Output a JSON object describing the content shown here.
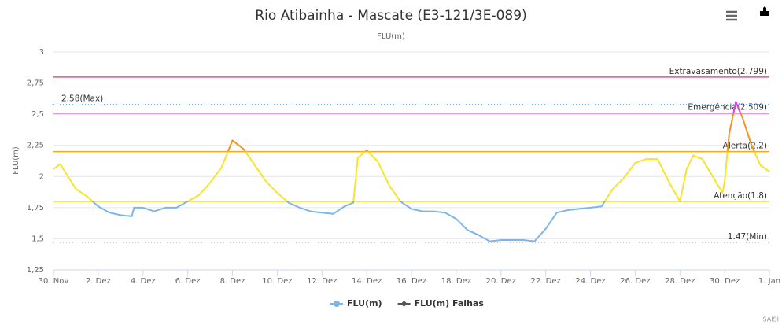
{
  "chart_data": {
    "type": "line",
    "title": "Rio Atibainha - Mascate (E3-121/3E-089)",
    "subtitle": "FLU(m)",
    "y_axis_label": "FLU(m)",
    "credits": "SAISI",
    "xlim": [
      0,
      32
    ],
    "xticks": [
      {
        "value": 0,
        "label": "30. Nov"
      },
      {
        "value": 2,
        "label": "2. Dez"
      },
      {
        "value": 4,
        "label": "4. Dez"
      },
      {
        "value": 6,
        "label": "6. Dez"
      },
      {
        "value": 8,
        "label": "8. Dez"
      },
      {
        "value": 10,
        "label": "10. Dez"
      },
      {
        "value": 12,
        "label": "12. Dez"
      },
      {
        "value": 14,
        "label": "14. Dez"
      },
      {
        "value": 16,
        "label": "16. Dez"
      },
      {
        "value": 18,
        "label": "18. Dez"
      },
      {
        "value": 20,
        "label": "20. Dez"
      },
      {
        "value": 22,
        "label": "22. Dez"
      },
      {
        "value": 24,
        "label": "24. Dez"
      },
      {
        "value": 26,
        "label": "26. Dez"
      },
      {
        "value": 28,
        "label": "28. Dez"
      },
      {
        "value": 30,
        "label": "30. Dez"
      },
      {
        "value": 32,
        "label": "1. Jan"
      }
    ],
    "ylim": [
      1.25,
      3
    ],
    "yticks": [
      {
        "value": 1.25,
        "label": "1,25"
      },
      {
        "value": 1.5,
        "label": "1,5"
      },
      {
        "value": 1.75,
        "label": "1,75"
      },
      {
        "value": 2,
        "label": "2"
      },
      {
        "value": 2.25,
        "label": "2,25"
      },
      {
        "value": 2.5,
        "label": "2,5"
      },
      {
        "value": 2.75,
        "label": "2,75"
      },
      {
        "value": 3,
        "label": "3"
      }
    ],
    "grid": true,
    "plot_lines": [
      {
        "value": 2.799,
        "label": "Extravasamento(2.799)",
        "color": "#f0506e",
        "dash": false,
        "align": "right"
      },
      {
        "value": 2.509,
        "label": "Emergência(2.509)",
        "color": "#e040e0",
        "dash": false,
        "align": "right"
      },
      {
        "value": 2.2,
        "label": "Alerta(2.2)",
        "color": "#f5a623",
        "dash": false,
        "align": "right"
      },
      {
        "value": 1.8,
        "label": "Atenção(1.8)",
        "color": "#f0e020",
        "dash": false,
        "align": "right"
      },
      {
        "value": 2.58,
        "label": "2.58(Max)",
        "color": "#7cb5ec",
        "dash": true,
        "align": "left"
      },
      {
        "value": 1.47,
        "label": "1.47(Min)",
        "color": "#999999",
        "dash": true,
        "align": "right"
      }
    ],
    "zones": [
      {
        "upto": 1.8,
        "color": "#7cb5ec"
      },
      {
        "upto": 2.2,
        "color": "#f5e52a"
      },
      {
        "upto": 2.509,
        "color": "#f7931e"
      },
      {
        "color": "#e040e0"
      }
    ],
    "series": [
      {
        "name": "FLU(m)",
        "color": "#7cb5ec",
        "marker": "circle",
        "x": [
          0,
          0.3,
          1,
          1.5,
          2,
          2.5,
          3,
          3.5,
          3.6,
          4,
          4.5,
          5,
          5.5,
          6,
          6.5,
          7,
          7.5,
          8,
          8.5,
          9,
          9.5,
          10,
          10.5,
          11,
          11.5,
          12,
          12.5,
          13,
          13.4,
          13.6,
          14,
          14.5,
          15,
          15.5,
          16,
          16.5,
          17,
          17.5,
          18,
          18.5,
          19,
          19.5,
          20,
          20.5,
          21,
          21.5,
          22,
          22.5,
          23,
          23.5,
          24,
          24.5,
          25,
          25.5,
          26,
          26.5,
          27,
          27.5,
          28,
          28.3,
          28.6,
          29,
          29.5,
          29.9,
          30,
          30.2,
          30.5,
          30.8,
          31.2,
          31.6,
          32
        ],
        "values": [
          2.06,
          2.1,
          1.9,
          1.84,
          1.76,
          1.71,
          1.69,
          1.68,
          1.75,
          1.75,
          1.72,
          1.75,
          1.75,
          1.8,
          1.85,
          1.95,
          2.07,
          2.29,
          2.22,
          2.09,
          1.96,
          1.87,
          1.79,
          1.75,
          1.72,
          1.71,
          1.7,
          1.76,
          1.79,
          2.15,
          2.21,
          2.12,
          1.93,
          1.8,
          1.74,
          1.72,
          1.72,
          1.71,
          1.66,
          1.57,
          1.53,
          1.48,
          1.49,
          1.49,
          1.49,
          1.48,
          1.58,
          1.71,
          1.73,
          1.74,
          1.75,
          1.76,
          1.9,
          1.99,
          2.11,
          2.14,
          2.14,
          1.96,
          1.8,
          2.06,
          2.17,
          2.14,
          1.99,
          1.87,
          1.96,
          2.34,
          2.6,
          2.47,
          2.25,
          2.09,
          2.04
        ]
      },
      {
        "name": "FLU(m) Falhas",
        "color": "#555555",
        "marker": "diamond",
        "x": [],
        "values": []
      }
    ]
  }
}
